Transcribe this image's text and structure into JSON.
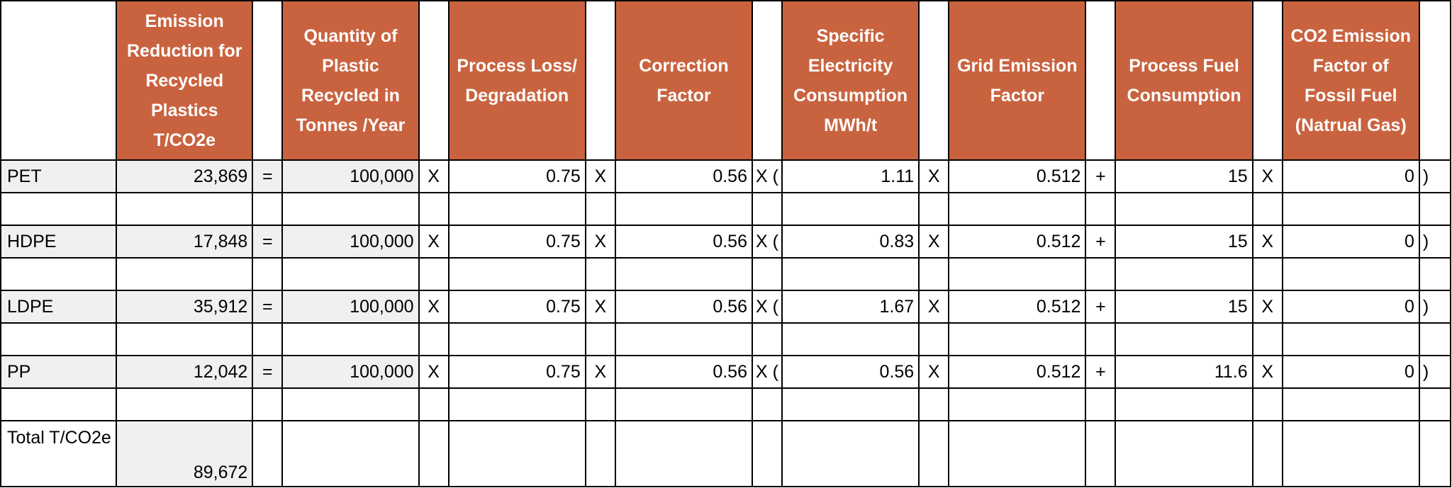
{
  "headers": [
    "Emission Reduction for Recycled Plastics T/CO2e",
    "Quantity of Plastic Recycled in Tonnes /Year",
    "Process Loss/ Degradation",
    "Correction Factor",
    "Specific Electricity Consumption MWh/t",
    "Grid Emission Factor",
    "Process Fuel Consumption",
    "CO2 Emission Factor of Fossil Fuel (Natrual Gas)"
  ],
  "rows": [
    {
      "label": "PET",
      "reduction": "23,869",
      "eq": "=",
      "quantity": "100,000",
      "op1": "X",
      "loss": "0.75",
      "op2": "X",
      "correction": "0.56",
      "op3": "X (",
      "electricity": "1.11",
      "op4": "X",
      "grid": "0.512",
      "op5": "+",
      "fuel": "15",
      "op6": "X",
      "co2": "0",
      "close": ")"
    },
    {
      "label": "HDPE",
      "reduction": "17,848",
      "eq": "=",
      "quantity": "100,000",
      "op1": "X",
      "loss": "0.75",
      "op2": "X",
      "correction": "0.56",
      "op3": "X (",
      "electricity": "0.83",
      "op4": "X",
      "grid": "0.512",
      "op5": "+",
      "fuel": "15",
      "op6": "X",
      "co2": "0",
      "close": ")"
    },
    {
      "label": "LDPE",
      "reduction": "35,912",
      "eq": "=",
      "quantity": "100,000",
      "op1": "X",
      "loss": "0.75",
      "op2": "X",
      "correction": "0.56",
      "op3": "X (",
      "electricity": "1.67",
      "op4": "X",
      "grid": "0.512",
      "op5": "+",
      "fuel": "15",
      "op6": "X",
      "co2": "0",
      "close": ")"
    },
    {
      "label": "PP",
      "reduction": "12,042",
      "eq": "=",
      "quantity": "100,000",
      "op1": "X",
      "loss": "0.75",
      "op2": "X",
      "correction": "0.56",
      "op3": "X (",
      "electricity": "0.56",
      "op4": "X",
      "grid": "0.512",
      "op5": "+",
      "fuel": "11.6",
      "op6": "X",
      "co2": "0",
      "close": ")"
    }
  ],
  "total": {
    "label": "Total T/CO2e",
    "value": "89,672"
  },
  "colors": {
    "header_bg": "#c9633f",
    "header_text": "#ffffff",
    "shaded_cell": "#f0f0f0"
  }
}
